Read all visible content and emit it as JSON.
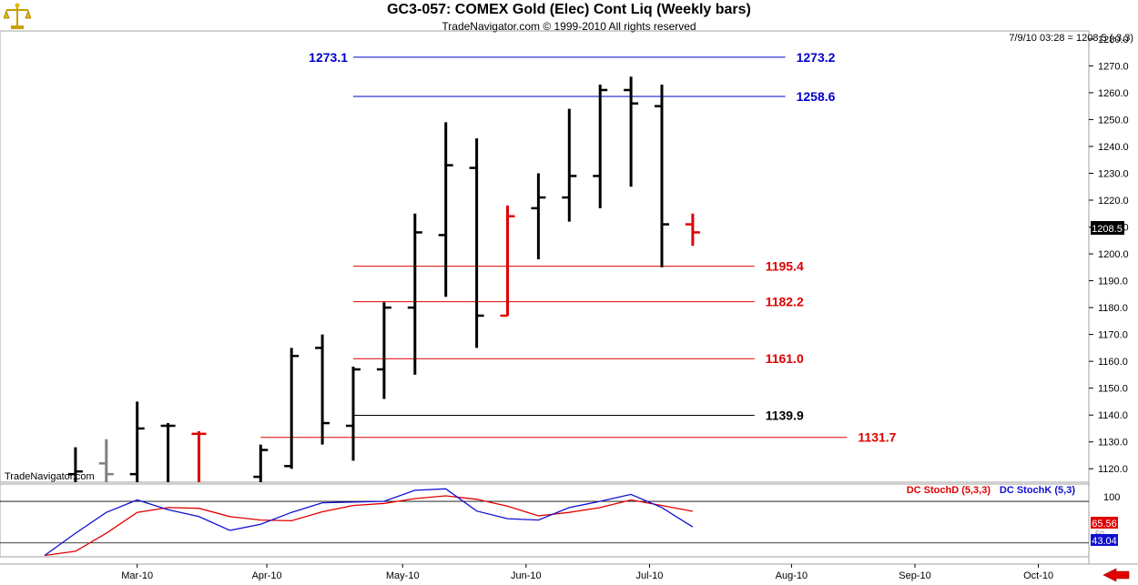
{
  "header": {
    "title": "GC3-057:  COMEX Gold (Elec) Cont Liq  (Weekly bars)",
    "subtitle": "TradeNavigator.com © 1999-2010 All rights reserved",
    "quote": "7/9/10 03:28 = 1208.5 (-3.3)",
    "watermark": "TradeNavigator.com"
  },
  "colors": {
    "up": "#000000",
    "down": "#e00000",
    "gray": "#808080",
    "blue_level": "#0000cc",
    "red_level": "#dd0000",
    "black_level": "#000000",
    "stoch_d": "#e00000",
    "stoch_k": "#1010d0"
  },
  "chart_data": [
    {
      "type": "ohlc",
      "ylim": [
        1115,
        1283
      ],
      "yticks": [
        1120,
        1130,
        1140,
        1150,
        1160,
        1170,
        1180,
        1190,
        1200,
        1210,
        1220,
        1230,
        1240,
        1250,
        1260,
        1270,
        1280
      ],
      "x_labels": [
        {
          "label": "Mar-10",
          "week": 3.0
        },
        {
          "label": "Apr-10",
          "week": 7.2
        },
        {
          "label": "May-10",
          "week": 11.6
        },
        {
          "label": "Jun-10",
          "week": 15.6
        },
        {
          "label": "Jul-10",
          "week": 19.6
        },
        {
          "label": "Aug-10",
          "week": 24.2
        },
        {
          "label": "Sep-10",
          "week": 28.2
        },
        {
          "label": "Oct-10",
          "week": 32.2
        }
      ],
      "last_price": "1208.5",
      "bars": [
        {
          "week": 1,
          "o": 1118,
          "h": 1128,
          "l": 1115,
          "c": 1119,
          "color": "up"
        },
        {
          "week": 2,
          "o": 1122,
          "h": 1131,
          "l": 1115,
          "c": 1118,
          "color": "gray"
        },
        {
          "week": 3,
          "o": 1118,
          "h": 1145,
          "l": 1115,
          "c": 1135,
          "color": "up"
        },
        {
          "week": 4,
          "o": 1136,
          "h": 1137,
          "l": 1115,
          "c": 1136,
          "color": "up"
        },
        {
          "week": 5,
          "o": 1133,
          "h": 1134,
          "l": 1115,
          "c": 1133,
          "color": "down"
        },
        {
          "week": 7,
          "o": 1117,
          "h": 1129,
          "l": 1115,
          "c": 1127,
          "color": "up"
        },
        {
          "week": 8,
          "o": 1121,
          "h": 1165,
          "l": 1120,
          "c": 1162,
          "color": "up"
        },
        {
          "week": 9,
          "o": 1165,
          "h": 1170,
          "l": 1129,
          "c": 1137,
          "color": "up"
        },
        {
          "week": 10,
          "o": 1136,
          "h": 1158,
          "l": 1123,
          "c": 1157,
          "color": "up"
        },
        {
          "week": 11,
          "o": 1157,
          "h": 1182,
          "l": 1146,
          "c": 1180,
          "color": "up"
        },
        {
          "week": 12,
          "o": 1180,
          "h": 1215,
          "l": 1155,
          "c": 1208,
          "color": "up"
        },
        {
          "week": 13,
          "o": 1207,
          "h": 1249,
          "l": 1184,
          "c": 1233,
          "color": "up"
        },
        {
          "week": 14,
          "o": 1232,
          "h": 1243,
          "l": 1165,
          "c": 1177,
          "color": "up"
        },
        {
          "week": 15,
          "o": 1177,
          "h": 1218,
          "l": 1177,
          "c": 1214,
          "color": "down"
        },
        {
          "week": 16,
          "o": 1217,
          "h": 1230,
          "l": 1198,
          "c": 1221,
          "color": "up"
        },
        {
          "week": 17,
          "o": 1221,
          "h": 1254,
          "l": 1212,
          "c": 1229,
          "color": "up"
        },
        {
          "week": 18,
          "o": 1229,
          "h": 1263,
          "l": 1217,
          "c": 1261,
          "color": "up"
        },
        {
          "week": 19,
          "o": 1261,
          "h": 1266,
          "l": 1225,
          "c": 1256,
          "color": "up"
        },
        {
          "week": 20,
          "o": 1255,
          "h": 1263,
          "l": 1195,
          "c": 1211,
          "color": "up"
        },
        {
          "week": 21,
          "o": 1211,
          "h": 1215,
          "l": 1203,
          "c": 1208,
          "color": "down"
        }
      ],
      "levels": [
        {
          "label": "1273.1",
          "value": 1273.1,
          "from_week": 10,
          "to_week": 24,
          "color": "blue_level",
          "label_side": "left"
        },
        {
          "label": "1273.2",
          "value": 1273.2,
          "from_week": 10,
          "to_week": 24,
          "color": "blue_level",
          "label_side": "right"
        },
        {
          "label": "1258.6",
          "value": 1258.6,
          "from_week": 10,
          "to_week": 24,
          "color": "blue_level",
          "label_side": "right"
        },
        {
          "label": "1195.4",
          "value": 1195.4,
          "from_week": 10,
          "to_week": 23,
          "color": "red_level",
          "label_side": "right"
        },
        {
          "label": "1182.2",
          "value": 1182.2,
          "from_week": 10,
          "to_week": 23,
          "color": "red_level",
          "label_side": "right"
        },
        {
          "label": "1161.0",
          "value": 1161.0,
          "from_week": 10,
          "to_week": 23,
          "color": "red_level",
          "label_side": "right"
        },
        {
          "label": "1139.9",
          "value": 1139.9,
          "from_week": 10,
          "to_week": 23,
          "color": "black_level",
          "label_side": "right"
        },
        {
          "label": "1131.7",
          "value": 1131.7,
          "from_week": 7,
          "to_week": 26,
          "color": "red_level",
          "label_side": "right"
        }
      ]
    },
    {
      "type": "line",
      "ylim": [
        0,
        105
      ],
      "ytick_label": "100",
      "ytick_value": 100,
      "ref_lines": [
        80,
        20
      ],
      "legend": [
        {
          "label": "DC StochD (5,3,3)",
          "color": "stoch_d"
        },
        {
          "label": "DC StochK (5,3)",
          "color": "stoch_k"
        }
      ],
      "last_d": "65.56",
      "last_k": "43.04",
      "hidden_label": "50",
      "stoch_d": [
        [
          0,
          2
        ],
        [
          1,
          8
        ],
        [
          2,
          34
        ],
        [
          3,
          64
        ],
        [
          4,
          71
        ],
        [
          5,
          70
        ],
        [
          6,
          58
        ],
        [
          7,
          53
        ],
        [
          8,
          52
        ],
        [
          9,
          65
        ],
        [
          10,
          74
        ],
        [
          11,
          77
        ],
        [
          12,
          84
        ],
        [
          13,
          88
        ],
        [
          14,
          83
        ],
        [
          15,
          73
        ],
        [
          16,
          59
        ],
        [
          17,
          64
        ],
        [
          18,
          71
        ],
        [
          19,
          82
        ],
        [
          20,
          74
        ],
        [
          21,
          65.56
        ]
      ],
      "stoch_k": [
        [
          0,
          2
        ],
        [
          1,
          34
        ],
        [
          2,
          64
        ],
        [
          3,
          82
        ],
        [
          4,
          68
        ],
        [
          5,
          58
        ],
        [
          6,
          38
        ],
        [
          7,
          47
        ],
        [
          8,
          64
        ],
        [
          9,
          78
        ],
        [
          10,
          79
        ],
        [
          11,
          80
        ],
        [
          12,
          96
        ],
        [
          13,
          98
        ],
        [
          14,
          66
        ],
        [
          15,
          55
        ],
        [
          16,
          53
        ],
        [
          17,
          71
        ],
        [
          18,
          80
        ],
        [
          19,
          90
        ],
        [
          20,
          71
        ],
        [
          21,
          43.04
        ]
      ]
    }
  ]
}
